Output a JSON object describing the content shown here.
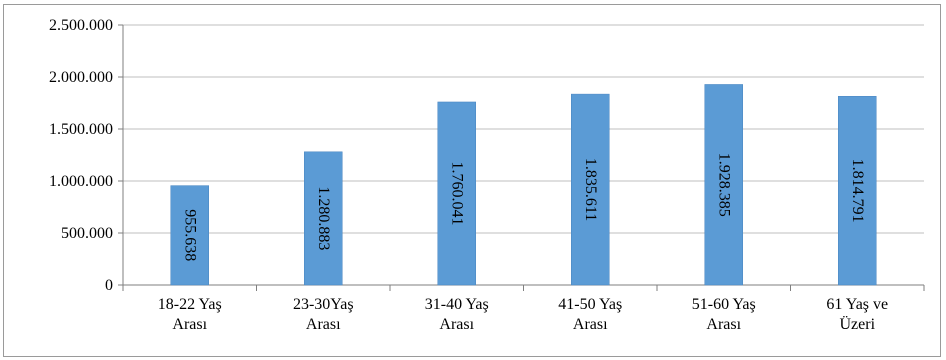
{
  "chart_data": {
    "type": "bar",
    "title": "",
    "xlabel": "",
    "ylabel": "",
    "ylim": [
      0,
      2500000
    ],
    "yticks": [
      {
        "value": 0,
        "label": "0"
      },
      {
        "value": 500000,
        "label": "500.000"
      },
      {
        "value": 1000000,
        "label": "1.000.000"
      },
      {
        "value": 1500000,
        "label": "1.500.000"
      },
      {
        "value": 2000000,
        "label": "2.000.000"
      },
      {
        "value": 2500000,
        "label": "2.500.000"
      }
    ],
    "grid": true,
    "legend": "none",
    "bar_color": "#5b9bd5",
    "categories": [
      [
        "18-22 Yaş",
        "Arası"
      ],
      [
        "23-30Yaş",
        "Arası"
      ],
      [
        "31-40 Yaş",
        "Arası"
      ],
      [
        "41-50 Yaş",
        "Arası"
      ],
      [
        "51-60 Yaş",
        "Arası"
      ],
      [
        "61 Yaş ve",
        "Üzeri"
      ]
    ],
    "values": [
      955638,
      1280883,
      1760041,
      1835611,
      1928385,
      1814791
    ],
    "data_labels": [
      "955.638",
      "1.280.883",
      "1.760.041",
      "1.835.611",
      "1.928.385",
      "1.814.791"
    ]
  }
}
